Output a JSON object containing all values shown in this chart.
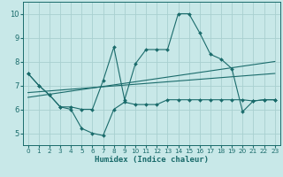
{
  "xlabel": "Humidex (Indice chaleur)",
  "xlim": [
    -0.5,
    23.5
  ],
  "ylim": [
    4.5,
    10.5
  ],
  "yticks": [
    5,
    6,
    7,
    8,
    9,
    10
  ],
  "xticks": [
    0,
    1,
    2,
    3,
    4,
    5,
    6,
    7,
    8,
    9,
    10,
    11,
    12,
    13,
    14,
    15,
    16,
    17,
    18,
    19,
    20,
    21,
    22,
    23
  ],
  "bg_color": "#c8e8e8",
  "line_color": "#1a6b6b",
  "grid_color": "#a8d0d0",
  "series": [
    {
      "x": [
        0,
        1,
        2,
        3,
        4,
        5,
        6,
        7,
        8,
        9,
        10,
        11,
        12,
        13,
        14,
        15,
        16,
        17,
        18,
        19,
        20,
        21,
        22,
        23
      ],
      "y": [
        7.5,
        7.0,
        6.6,
        6.1,
        6.0,
        5.2,
        5.0,
        4.9,
        6.0,
        6.3,
        6.2,
        6.2,
        6.2,
        6.4,
        6.4,
        6.4,
        6.4,
        6.4,
        6.4,
        6.4,
        6.4,
        6.35,
        6.4,
        6.4
      ],
      "marker": "D",
      "markersize": 2.0,
      "linewidth": 0.8
    },
    {
      "x": [
        0,
        1,
        2,
        3,
        4,
        5,
        6,
        7,
        8,
        9,
        10,
        11,
        12,
        13,
        14,
        15,
        16,
        17,
        18,
        19,
        20,
        21,
        22,
        23
      ],
      "y": [
        7.5,
        7.0,
        6.6,
        6.1,
        6.1,
        6.0,
        6.0,
        7.2,
        8.6,
        6.4,
        7.9,
        8.5,
        8.5,
        8.5,
        10.0,
        10.0,
        9.2,
        8.3,
        8.1,
        7.7,
        5.9,
        6.35,
        6.4,
        6.4
      ],
      "marker": "D",
      "markersize": 2.0,
      "linewidth": 0.8
    },
    {
      "x": [
        0,
        23
      ],
      "y": [
        6.7,
        7.5
      ],
      "marker": null,
      "linewidth": 0.8
    },
    {
      "x": [
        0,
        23
      ],
      "y": [
        6.5,
        8.0
      ],
      "marker": null,
      "linewidth": 0.8
    }
  ]
}
